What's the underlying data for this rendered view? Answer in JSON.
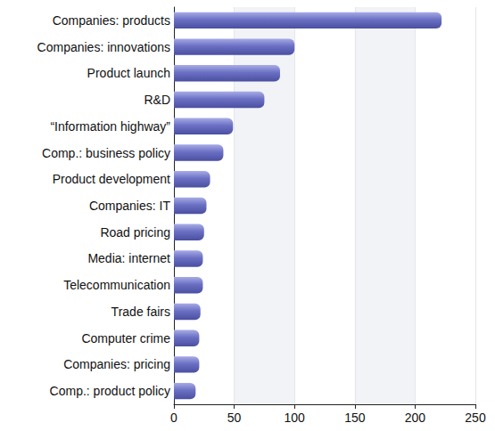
{
  "chart_data": {
    "type": "bar",
    "orientation": "horizontal",
    "categories": [
      "Companies: products",
      "Companies: innovations",
      "Product launch",
      "R&D",
      "“Information highway”",
      "Comp.: business policy",
      "Product development",
      "Companies: IT",
      "Road pricing",
      "Media: internet",
      "Telecommunication",
      "Trade fairs",
      "Computer crime",
      "Companies: pricing",
      "Comp.: product policy"
    ],
    "values": [
      222,
      100,
      88,
      75,
      49,
      41,
      30,
      27,
      25,
      24,
      24,
      22,
      21,
      21,
      18
    ],
    "color": "#6b70c4",
    "xlim": [
      0,
      250
    ],
    "xticks": [
      0,
      50,
      100,
      150,
      200,
      250
    ],
    "grid": true
  }
}
